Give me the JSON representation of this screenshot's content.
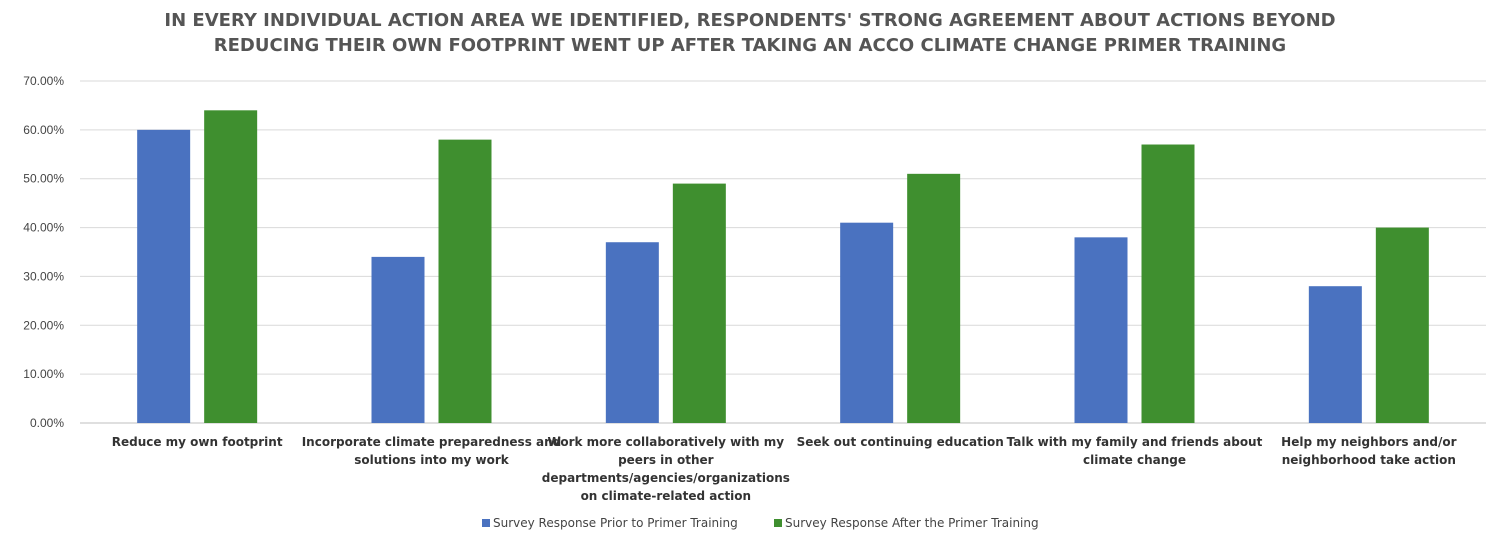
{
  "chart_data": {
    "type": "bar",
    "title_lines": [
      "IN EVERY INDIVIDUAL ACTION AREA WE IDENTIFIED, RESPONDENTS' STRONG AGREEMENT ABOUT ACTIONS BEYOND",
      "REDUCING THEIR OWN FOOTPRINT WENT UP AFTER TAKING AN ACCO CLIMATE CHANGE PRIMER TRAINING"
    ],
    "categories": [
      [
        "Reduce my own footprint"
      ],
      [
        "Incorporate climate preparedness and",
        "solutions into my work"
      ],
      [
        "Work more collaboratively with my",
        "peers in other",
        "departments/agencies/organizations",
        "on climate-related action"
      ],
      [
        "Seek out continuing education"
      ],
      [
        "Talk with my family and friends about",
        "climate change"
      ],
      [
        "Help my neighbors and/or",
        "neighborhood take action"
      ]
    ],
    "series": [
      {
        "name": "Survey Response Prior to Primer Training",
        "color": "#4a72c0",
        "values": [
          60,
          34,
          37,
          41,
          38,
          28
        ]
      },
      {
        "name": "Survey Response After the Primer Training",
        "color": "#3f8f2f",
        "values": [
          64,
          58,
          49,
          51,
          57,
          40
        ]
      }
    ],
    "ylim": [
      0,
      70
    ],
    "yticks": [
      "0.00%",
      "10.00%",
      "20.00%",
      "30.00%",
      "40.00%",
      "50.00%",
      "60.00%",
      "70.00%"
    ],
    "grid": true,
    "legend_position": "bottom"
  }
}
